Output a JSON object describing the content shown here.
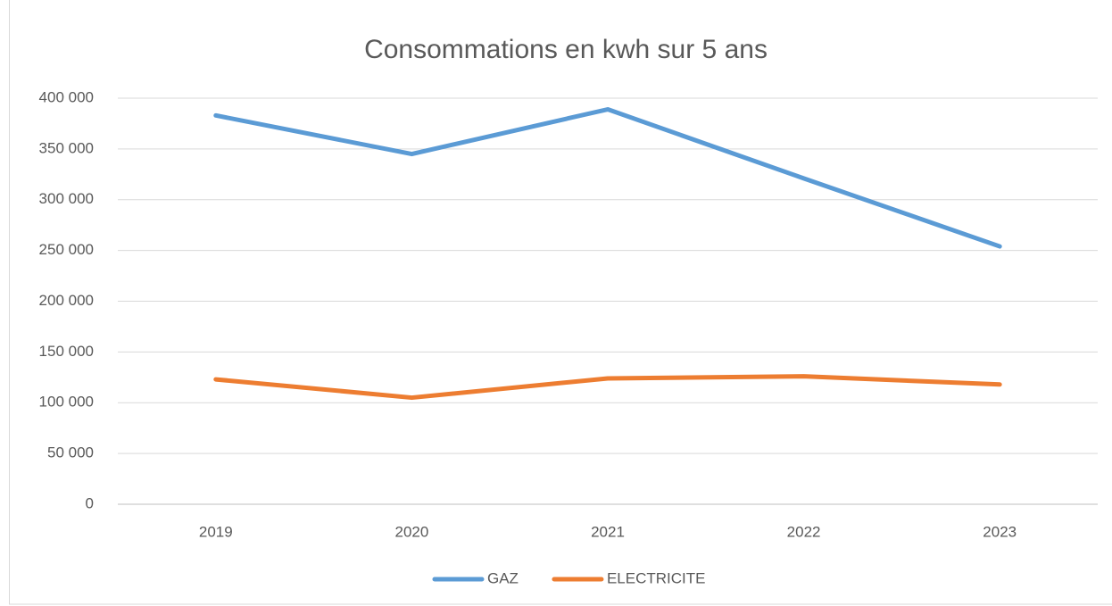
{
  "chart_data": {
    "type": "line",
    "title": "Consommations en kwh sur 5 ans",
    "categories": [
      "2019",
      "2020",
      "2021",
      "2022",
      "2023"
    ],
    "series": [
      {
        "name": "GAZ",
        "color": "#5b9bd5",
        "values": [
          383000,
          345000,
          389000,
          321000,
          254000
        ]
      },
      {
        "name": "ELECTRICITE",
        "color": "#ed7d31",
        "values": [
          123000,
          105000,
          124000,
          126000,
          118000
        ]
      }
    ],
    "ylim": [
      0,
      400000
    ],
    "yticks": [
      0,
      {
        "value": 50000,
        "label": "50 000"
      },
      {
        "value": 100000,
        "label": "100 000"
      },
      {
        "value": 150000,
        "label": "150 000"
      },
      {
        "value": 200000,
        "label": "200 000"
      },
      {
        "value": 250000,
        "label": "250 000"
      },
      {
        "value": 300000,
        "label": "300 000"
      },
      {
        "value": 350000,
        "label": "350 000"
      },
      {
        "value": 400000,
        "label": "400 000"
      }
    ],
    "grid": true,
    "legend": "bottom"
  }
}
